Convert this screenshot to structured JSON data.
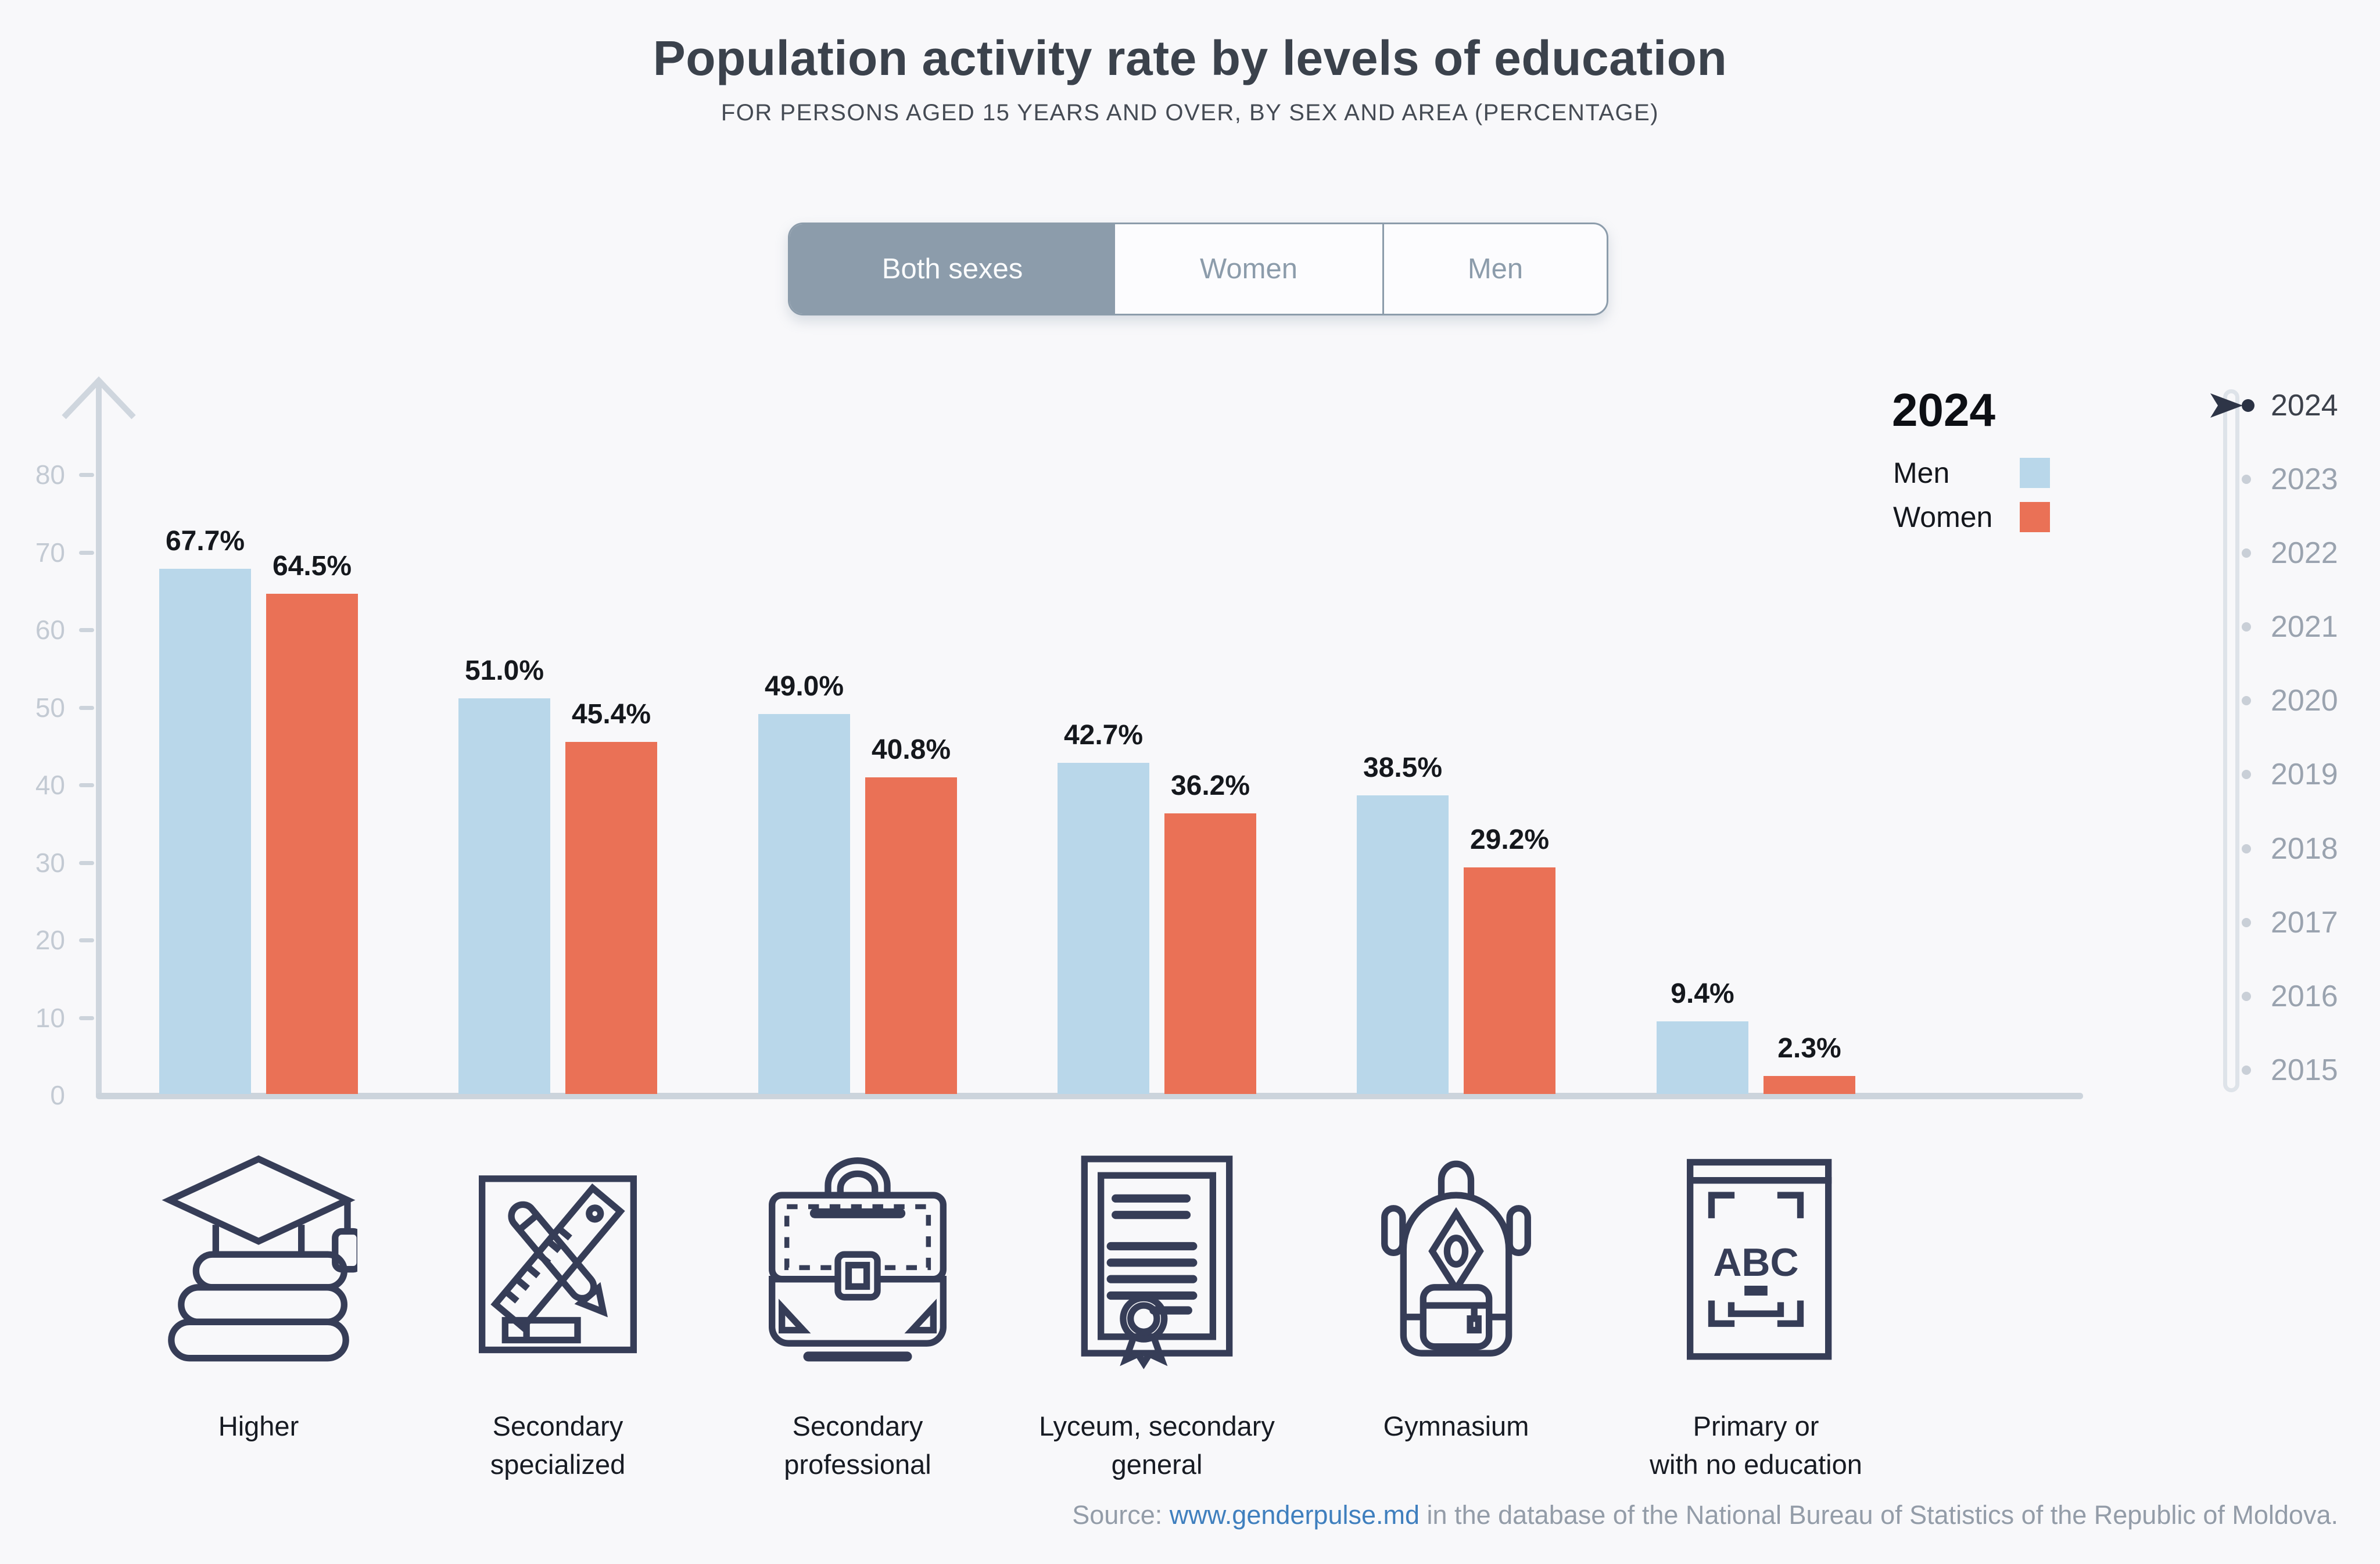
{
  "colors": {
    "background": "#f8f8fa",
    "men_bar": "#b9d7ea",
    "women_bar": "#ea7156",
    "accent_slate": "#8c9cab",
    "icon_navy": "#363d57",
    "axis_gray": "#ccd4dc",
    "link_blue": "#3f7fbe"
  },
  "header": {
    "title": "Population activity rate by levels of education",
    "subtitle": "FOR PERSONS AGED 15 YEARS AND OVER, BY SEX AND AREA (PERCENTAGE)"
  },
  "toggle": {
    "options": [
      {
        "label": "Both sexes",
        "selected": true
      },
      {
        "label": "Women",
        "selected": false
      },
      {
        "label": "Men",
        "selected": false
      }
    ]
  },
  "legend": {
    "year": "2024",
    "items": [
      {
        "label": "Men",
        "color": "#b9d7ea"
      },
      {
        "label": "Women",
        "color": "#ea7156"
      }
    ]
  },
  "y_axis": {
    "ticks": [
      "80",
      "70",
      "60",
      "50",
      "40",
      "30",
      "20",
      "10",
      "0"
    ]
  },
  "chart_data": {
    "type": "bar",
    "title": "Population activity rate by levels of education",
    "subtitle": "FOR PERSONS AGED 15 YEARS AND OVER, BY SEX AND AREA (PERCENTAGE)",
    "unit": "%",
    "categories": [
      "Higher",
      "Secondary\nspecialized",
      "Secondary\nprofessional",
      "Lyceum, secondary\ngeneral",
      "Gymnasium",
      "Primary or\nwith no education"
    ],
    "series": [
      {
        "name": "Men",
        "color": "#b9d7ea",
        "values": [
          67.7,
          51.0,
          49.0,
          42.7,
          38.5,
          9.4
        ],
        "labels": [
          "67.7%",
          "51.0%",
          "49.0%",
          "42.7%",
          "38.5%",
          "9.4%"
        ]
      },
      {
        "name": "Women",
        "color": "#ea7156",
        "values": [
          64.5,
          45.4,
          40.8,
          36.2,
          29.2,
          2.3
        ],
        "labels": [
          "64.5%",
          "45.4%",
          "40.8%",
          "36.2%",
          "29.2%",
          "2.3%"
        ]
      }
    ],
    "ylim": [
      0,
      80
    ],
    "y_ticks": [
      0,
      10,
      20,
      30,
      40,
      50,
      60,
      70,
      80
    ],
    "grid": false,
    "legend_position": "right",
    "selected_year": "2024",
    "selected_sex_filter": "Both sexes"
  },
  "timeline": {
    "active_year": "2024",
    "years": [
      "2024",
      "2023",
      "2022",
      "2021",
      "2020",
      "2019",
      "2018",
      "2017",
      "2016",
      "2015"
    ]
  },
  "icons": [
    "graduation-cap-books-icon",
    "ruler-pencil-icon",
    "briefcase-icon",
    "diploma-icon",
    "backpack-icon",
    "abc-book-icon"
  ],
  "source": {
    "prefix": "Source: ",
    "link_text": "www.genderpulse.md",
    "suffix": " in the database of the National Bureau of Statistics of the Republic of Moldova."
  }
}
